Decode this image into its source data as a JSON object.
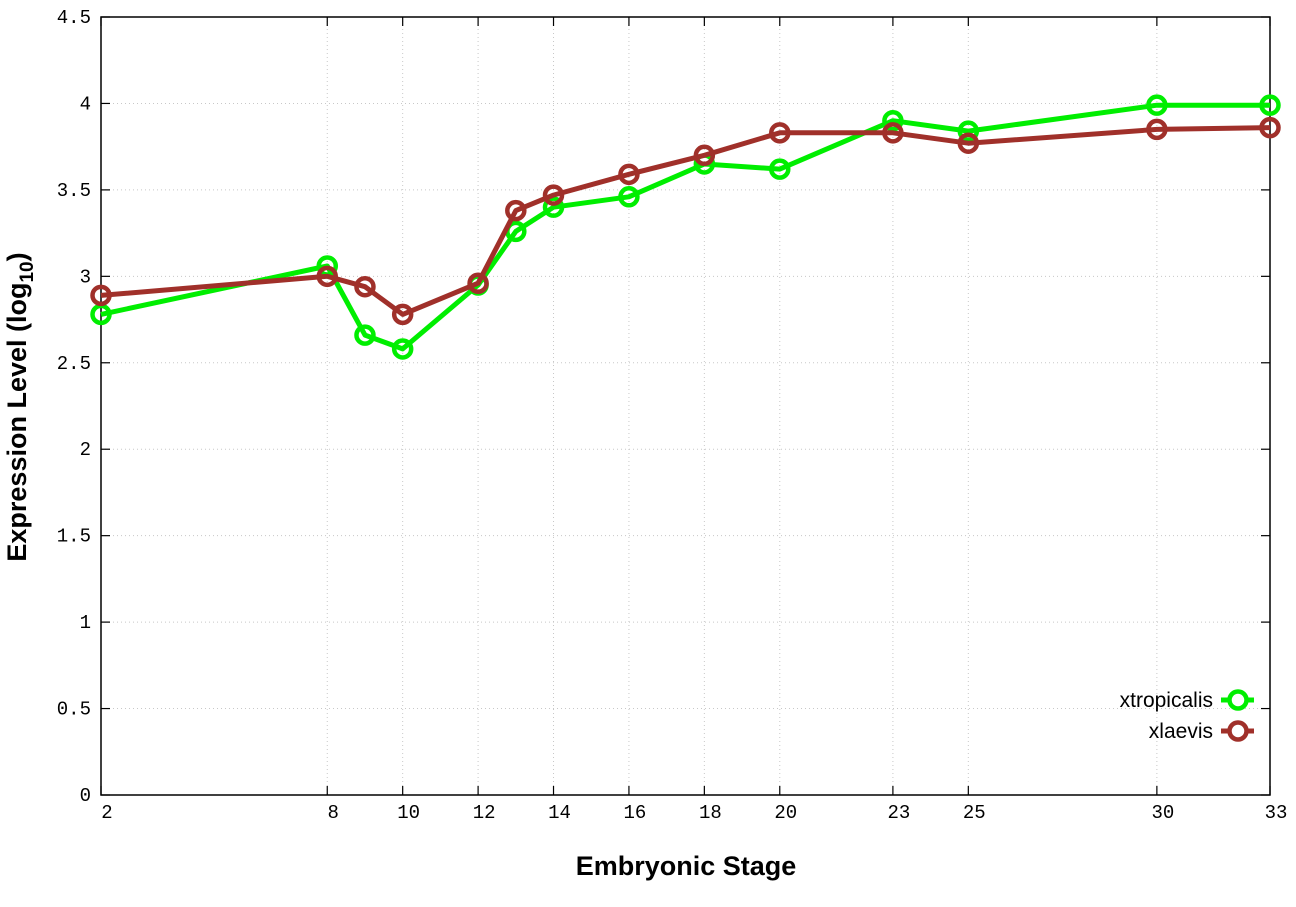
{
  "chart_data": {
    "type": "line",
    "title": "",
    "xlabel": "Embryonic Stage",
    "ylabel": {
      "main": "Expression Level (log",
      "sub": "10",
      "close": ")"
    },
    "x": [
      2,
      8,
      9,
      10,
      12,
      13,
      14,
      16,
      18,
      20,
      23,
      25,
      30,
      33
    ],
    "xticks": [
      2,
      8,
      10,
      12,
      14,
      16,
      18,
      20,
      23,
      25,
      30,
      33
    ],
    "yticks": [
      "0",
      "0.5",
      "1",
      "1.5",
      "2",
      "2.5",
      "3",
      "3.5",
      "4",
      "4.5"
    ],
    "xlim": [
      2,
      33
    ],
    "ylim": [
      0,
      4.5
    ],
    "grid": true,
    "legend_position": "bottom-right",
    "series": [
      {
        "name": "xtropicalis",
        "color": "#00ee00",
        "values": [
          2.78,
          3.06,
          2.66,
          2.58,
          2.95,
          3.26,
          3.4,
          3.46,
          3.65,
          3.62,
          3.9,
          3.84,
          3.99,
          3.99
        ]
      },
      {
        "name": "xlaevis",
        "color": "#a0302a",
        "values": [
          2.89,
          3.0,
          2.94,
          2.78,
          2.96,
          3.38,
          3.47,
          3.59,
          3.7,
          3.83,
          3.83,
          3.77,
          3.85,
          3.86
        ]
      }
    ]
  }
}
